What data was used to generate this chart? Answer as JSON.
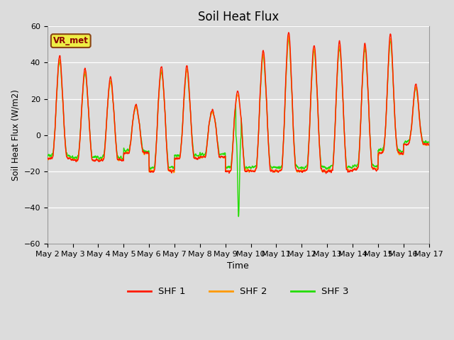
{
  "title": "Soil Heat Flux",
  "ylabel": "Soil Heat Flux (W/m2)",
  "xlabel": "Time",
  "ylim": [
    -60,
    60
  ],
  "yticks": [
    -60,
    -40,
    -20,
    0,
    20,
    40,
    60
  ],
  "bg_color": "#dcdcdc",
  "plot_bg_color": "#dcdcdc",
  "shf1_color": "#ff1a00",
  "shf2_color": "#ff9900",
  "shf3_color": "#22dd00",
  "legend_label": "VR_met",
  "line_width": 1.0,
  "num_days": 15,
  "points_per_day": 144,
  "day_amplitudes": [
    44,
    37,
    32,
    17,
    38,
    38,
    14,
    24,
    47,
    57,
    50,
    52,
    51,
    56,
    28
  ],
  "night_levels": [
    -13,
    -14,
    -14,
    -10,
    -20,
    -13,
    -12,
    -20,
    -20,
    -20,
    -20,
    -20,
    -19,
    -10,
    -5
  ]
}
